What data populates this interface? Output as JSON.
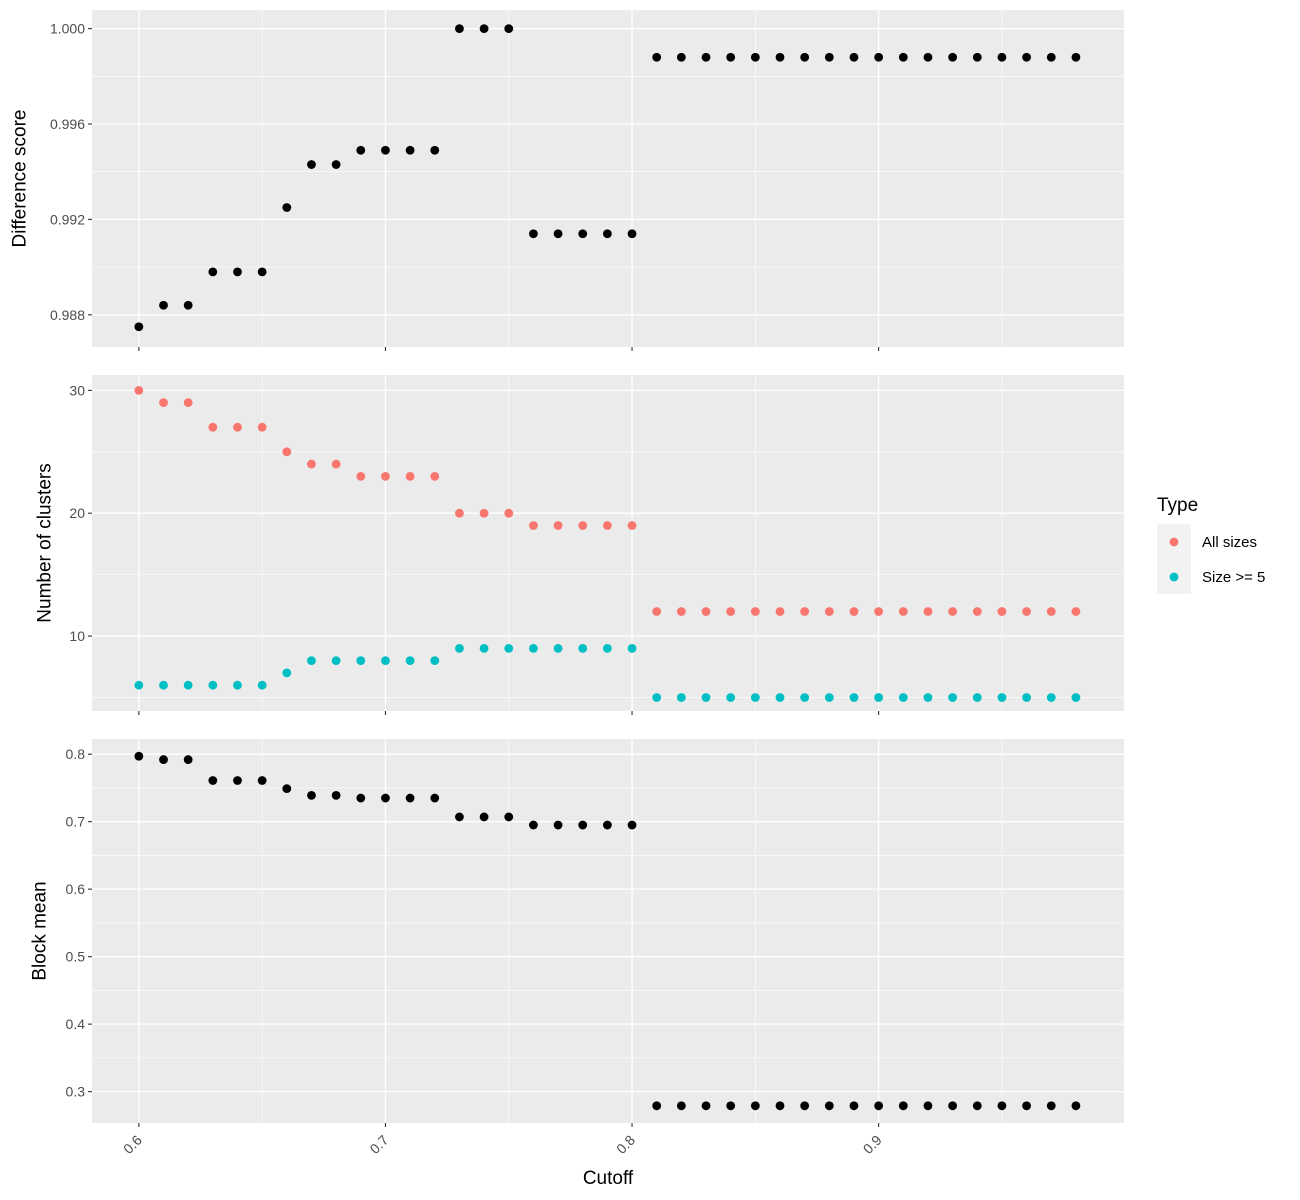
{
  "chart_data": {
    "type": "scatter",
    "xlabel": "Cutoff",
    "x_ticks": [
      "0.6",
      "0.7",
      "0.8",
      "0.9"
    ],
    "x_tick_values": [
      0.6,
      0.7,
      0.8,
      0.9
    ],
    "xlim": [
      0.581,
      0.9995
    ],
    "x": [
      0.6,
      0.61,
      0.62,
      0.63,
      0.64,
      0.65,
      0.66,
      0.67,
      0.68,
      0.69,
      0.7,
      0.71,
      0.72,
      0.73,
      0.74,
      0.75,
      0.76,
      0.77,
      0.78,
      0.79,
      0.8,
      0.81,
      0.82,
      0.83,
      0.84,
      0.85,
      0.86,
      0.87,
      0.88,
      0.89,
      0.9,
      0.91,
      0.92,
      0.93,
      0.94,
      0.95,
      0.96,
      0.97,
      0.98
    ],
    "legend": {
      "title": "Type",
      "placement": "right",
      "entries": [
        {
          "name": "All sizes",
          "color": "#F8766D"
        },
        {
          "name": "Size >= 5",
          "color": "#00BFC4"
        }
      ]
    },
    "panels": [
      {
        "ylabel": "Difference score",
        "ylim": [
          0.98665,
          1.00078
        ],
        "y_ticks": [
          "0.988",
          "0.992",
          "0.996",
          "1.000"
        ],
        "y_tick_values": [
          0.988,
          0.992,
          0.996,
          1.0
        ],
        "series": [
          {
            "color": "#000000",
            "values": [
              0.9875,
              0.9884,
              0.9884,
              0.9898,
              0.9898,
              0.9898,
              0.9925,
              0.9943,
              0.9943,
              0.9949,
              0.9949,
              0.9949,
              0.9949,
              1.0,
              1.0,
              1.0,
              0.9914,
              0.9914,
              0.9914,
              0.9914,
              0.9914,
              0.9988,
              0.9988,
              0.9988,
              0.9988,
              0.9988,
              0.9988,
              0.9988,
              0.9988,
              0.9988,
              0.9988,
              0.9988,
              0.9988,
              0.9988,
              0.9988,
              0.9988,
              0.9988,
              0.9988,
              0.9988
            ]
          }
        ]
      },
      {
        "ylabel": "Number of clusters",
        "ylim": [
          3.9,
          31.25
        ],
        "y_ticks": [
          "10",
          "20",
          "30"
        ],
        "y_tick_values": [
          10,
          20,
          30
        ],
        "series": [
          {
            "name": "All sizes",
            "color": "#F8766D",
            "values": [
              30,
              29,
              29,
              27,
              27,
              27,
              25,
              24,
              24,
              23,
              23,
              23,
              23,
              20,
              20,
              20,
              19,
              19,
              19,
              19,
              19,
              12,
              12,
              12,
              12,
              12,
              12,
              12,
              12,
              12,
              12,
              12,
              12,
              12,
              12,
              12,
              12,
              12,
              12
            ]
          },
          {
            "name": "Size >= 5",
            "color": "#00BFC4",
            "values": [
              6,
              6,
              6,
              6,
              6,
              6,
              7,
              8,
              8,
              8,
              8,
              8,
              8,
              9,
              9,
              9,
              9,
              9,
              9,
              9,
              9,
              5,
              5,
              5,
              5,
              5,
              5,
              5,
              5,
              5,
              5,
              5,
              5,
              5,
              5,
              5,
              5,
              5,
              5
            ]
          }
        ]
      },
      {
        "ylabel": "Block mean",
        "ylim": [
          0.2535,
          0.8225
        ],
        "y_ticks": [
          "0.3",
          "0.4",
          "0.5",
          "0.6",
          "0.7",
          "0.8"
        ],
        "y_tick_values": [
          0.3,
          0.4,
          0.5,
          0.6,
          0.7,
          0.8
        ],
        "series": [
          {
            "color": "#000000",
            "values": [
              0.797,
              0.792,
              0.792,
              0.761,
              0.761,
              0.761,
              0.749,
              0.739,
              0.739,
              0.735,
              0.735,
              0.735,
              0.735,
              0.707,
              0.707,
              0.707,
              0.695,
              0.695,
              0.695,
              0.695,
              0.695,
              0.279,
              0.279,
              0.279,
              0.279,
              0.279,
              0.279,
              0.279,
              0.279,
              0.279,
              0.279,
              0.279,
              0.279,
              0.279,
              0.279,
              0.279,
              0.279,
              0.279,
              0.279
            ]
          }
        ]
      }
    ]
  }
}
